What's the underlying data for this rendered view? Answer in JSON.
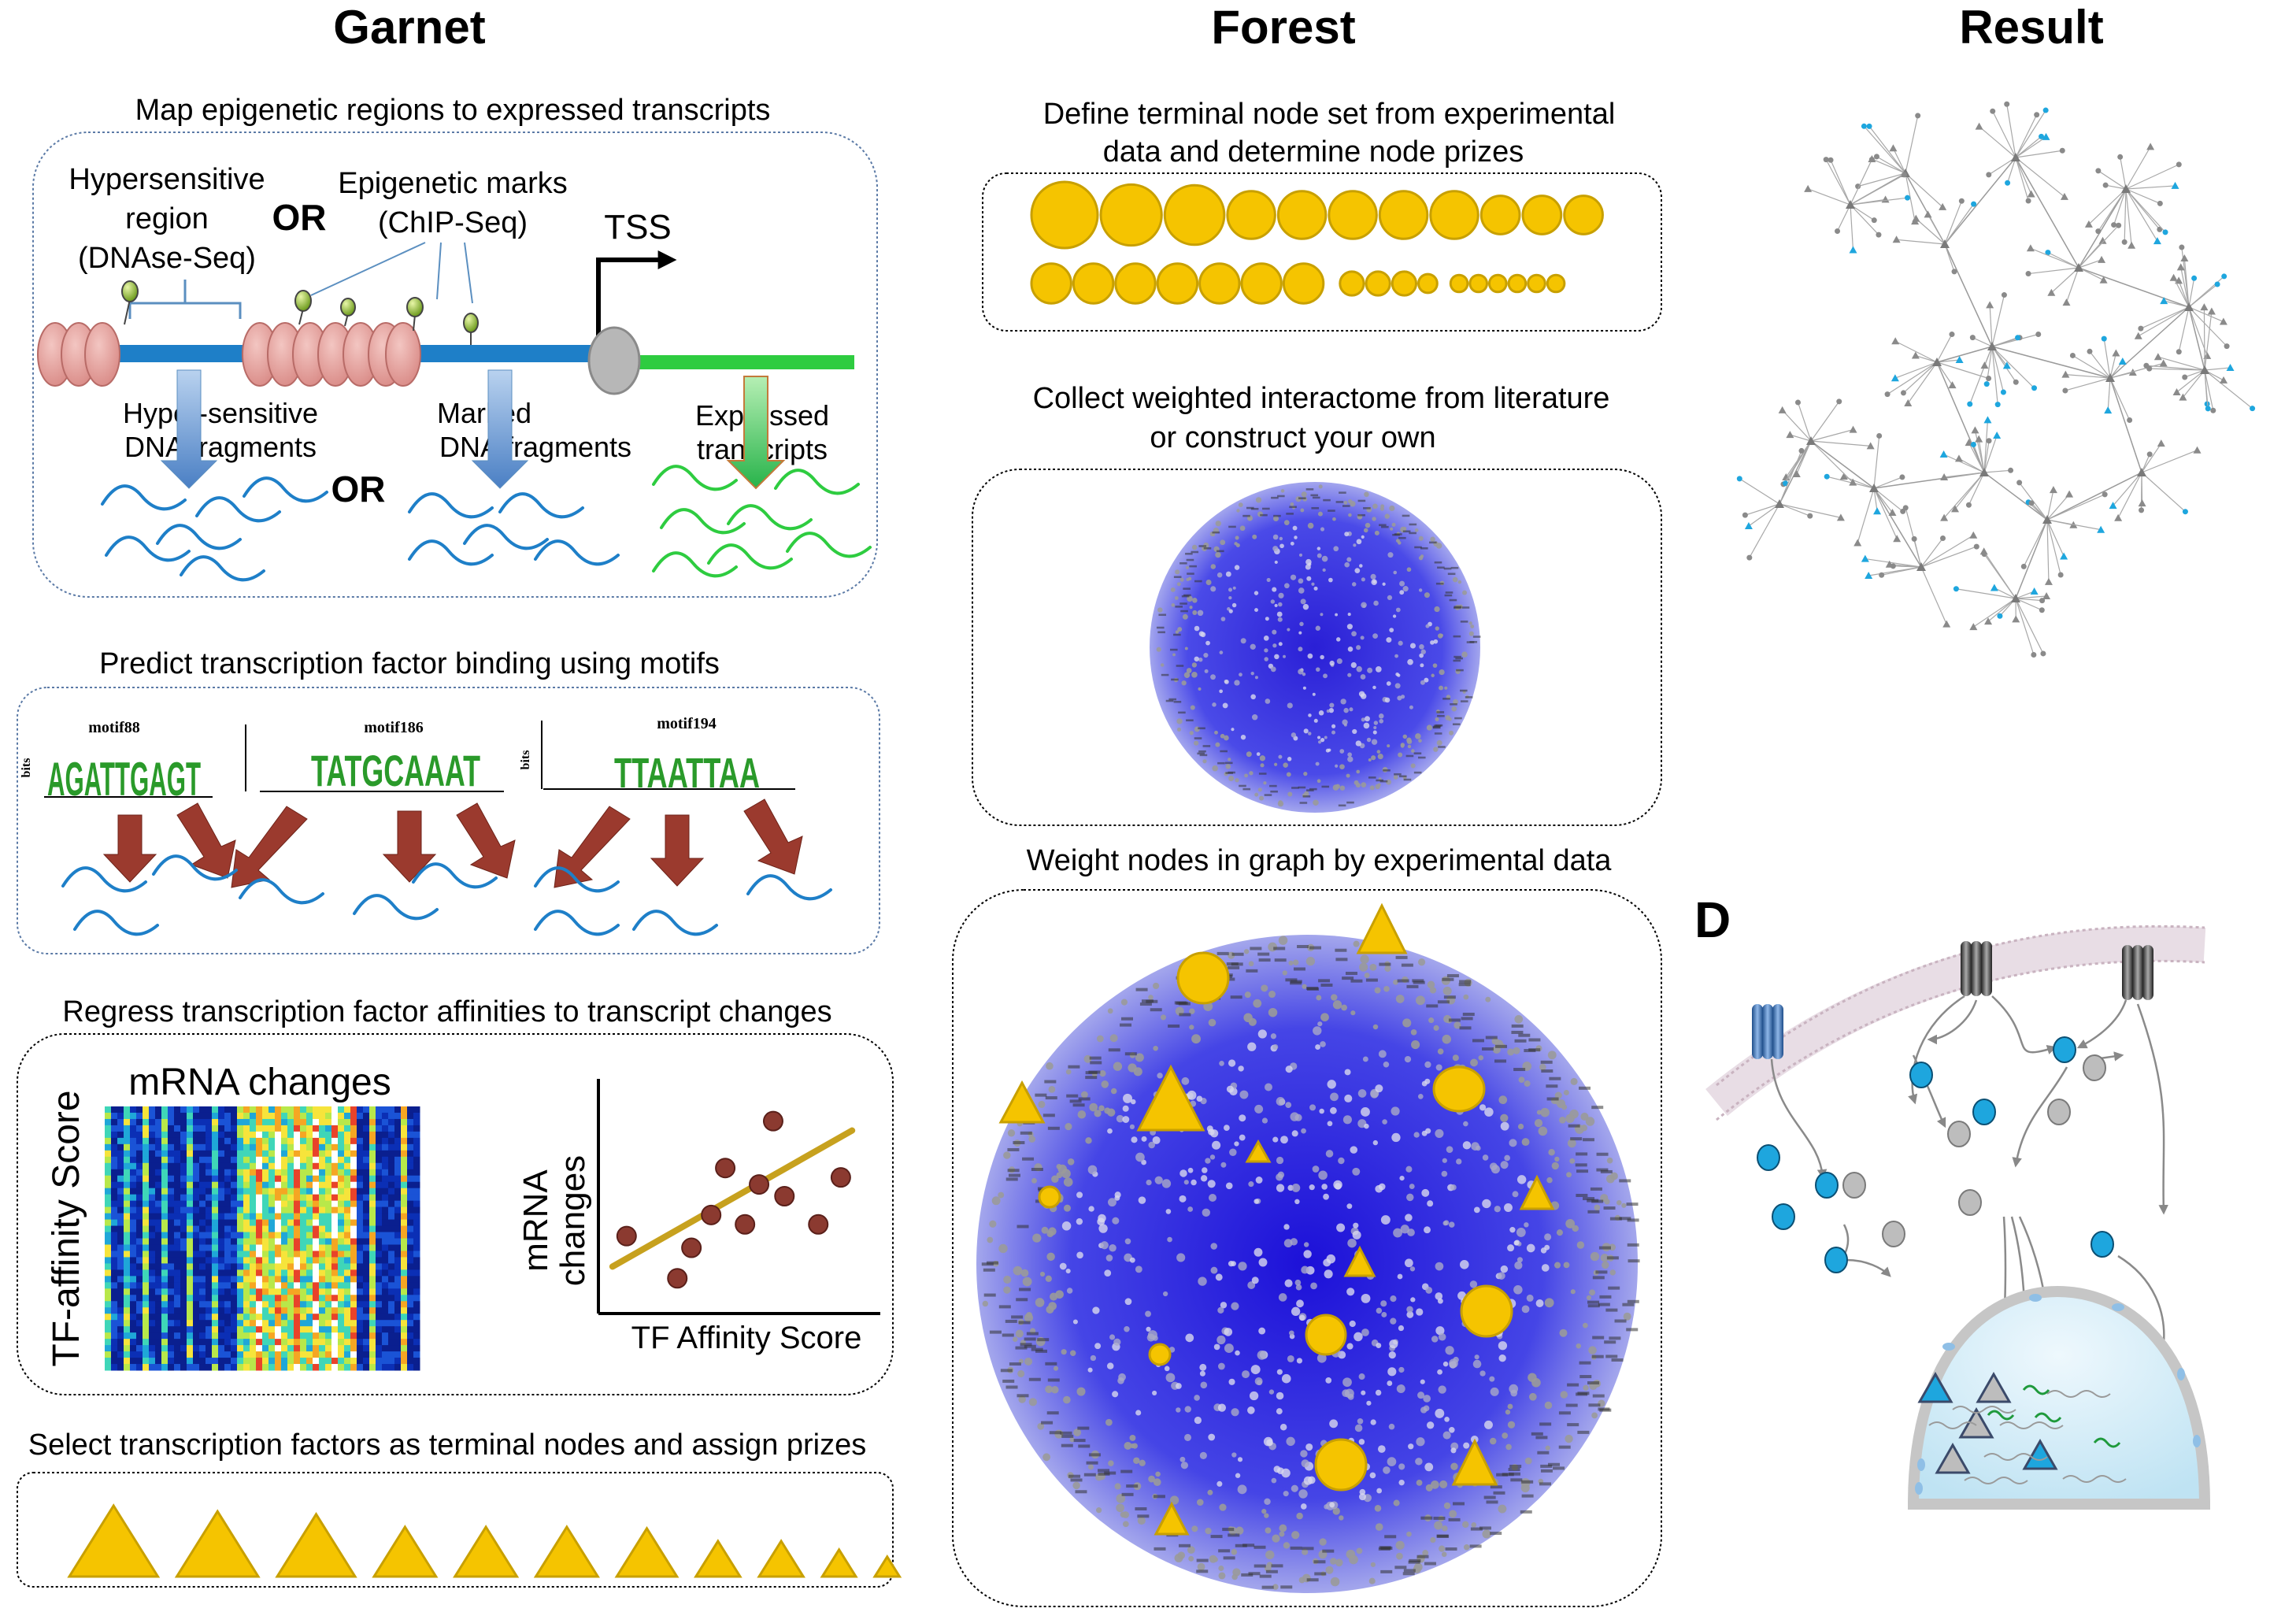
{
  "columns": {
    "garnet": "Garnet",
    "forest": "Forest",
    "result": "Result"
  },
  "garnet": {
    "step1": {
      "title": "Map epigenetic regions to expressed transcripts",
      "hypersensitive": [
        "Hypersensitive",
        "region",
        "(DNAse-Seq)"
      ],
      "or_top": "OR",
      "epigenetic": [
        "Epigenetic marks",
        "(ChIP-Seq)"
      ],
      "tss": "TSS",
      "hyper_fragments": [
        "Hyper-sensitive",
        "DNA fragments"
      ],
      "or_bottom": "OR",
      "marked_fragments": [
        "Marked",
        "DNA fragments"
      ],
      "expressed": [
        "Expressed",
        "transcripts"
      ]
    },
    "step2": {
      "title": "Predict transcription factor binding using motifs",
      "motifs": [
        {
          "name": "motif88",
          "letters": "AGATTGAGT"
        },
        {
          "name": "motif186",
          "letters": "TATGCAAAT"
        },
        {
          "name": "motif194",
          "letters": "TTAATTAA"
        }
      ],
      "bits": "bits"
    },
    "step3": {
      "title": "Regress transcription factor affinities to transcript changes",
      "heatmap_title": "mRNA changes",
      "heatmap_ylabel": "TF-affinity Score",
      "scatter_ylabel": [
        "mRNA",
        "changes"
      ],
      "scatter_xlabel": "TF Affinity Score",
      "points": [
        [
          0.1,
          0.33
        ],
        [
          0.28,
          0.15
        ],
        [
          0.33,
          0.28
        ],
        [
          0.4,
          0.42
        ],
        [
          0.45,
          0.62
        ],
        [
          0.52,
          0.38
        ],
        [
          0.57,
          0.55
        ],
        [
          0.62,
          0.82
        ],
        [
          0.66,
          0.5
        ],
        [
          0.78,
          0.38
        ],
        [
          0.86,
          0.58
        ]
      ],
      "trend": [
        [
          0.05,
          0.2
        ],
        [
          0.9,
          0.78
        ]
      ]
    },
    "step4": {
      "title": "Select transcription factors as terminal nodes and assign prizes",
      "triangles": [
        1.0,
        0.92,
        0.88,
        0.7,
        0.7,
        0.7,
        0.68,
        0.5,
        0.5,
        0.38,
        0.28
      ]
    }
  },
  "forest": {
    "step1": {
      "title": [
        "Define terminal node set from experimental",
        "data and determine node prizes"
      ],
      "row1": [
        1.0,
        0.92,
        0.9,
        0.72,
        0.72,
        0.72,
        0.72,
        0.72,
        0.58,
        0.58,
        0.58
      ],
      "row2": [
        0.7,
        0.7,
        0.7,
        0.7,
        0.7,
        0.7,
        0.7,
        0.42,
        0.42,
        0.42,
        0.33,
        0.3,
        0.3,
        0.3,
        0.3,
        0.3,
        0.3
      ]
    },
    "step2": {
      "title": [
        "Collect weighted interactome from literature",
        "or construct your own"
      ]
    },
    "step3": {
      "title": "Weight nodes in graph by experimental data"
    }
  },
  "result": {
    "panel_d": "D"
  },
  "colors": {
    "gold": "#f5c400",
    "gold_stroke": "#c8a000",
    "blue_line": "#1e7fc8",
    "green_line": "#2ecc40",
    "arrow_red": "#9b3a2e",
    "cyan_node": "#1ea6de",
    "graph_blue": "#1a1aff"
  }
}
